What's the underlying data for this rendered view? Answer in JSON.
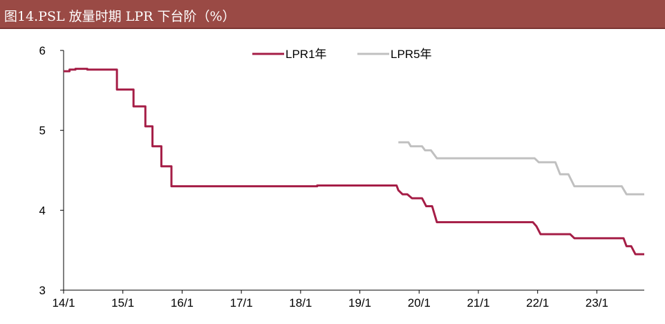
{
  "title": "图14.PSL 放量时期 LPR 下台阶（%）",
  "colors": {
    "title_bg": "#9a4a45",
    "lpr1": "#a51d46",
    "lpr5": "#c0c0c0",
    "axis": "#000000"
  },
  "chart_data": {
    "type": "line",
    "title": "图14.PSL 放量时期 LPR 下台阶（%）",
    "xlabel": "",
    "ylabel": "",
    "xlim": [
      2014.0,
      2023.8
    ],
    "ylim": [
      3,
      6
    ],
    "yticks": [
      3,
      4,
      5,
      6
    ],
    "xticks": [
      {
        "label": "14/1",
        "value": 2014.0
      },
      {
        "label": "15/1",
        "value": 2015.0
      },
      {
        "label": "16/1",
        "value": 2016.0
      },
      {
        "label": "17/1",
        "value": 2017.0
      },
      {
        "label": "18/1",
        "value": 2018.0
      },
      {
        "label": "19/1",
        "value": 2019.0
      },
      {
        "label": "20/1",
        "value": 2020.0
      },
      {
        "label": "21/1",
        "value": 2021.0
      },
      {
        "label": "22/1",
        "value": 2022.0
      },
      {
        "label": "23/1",
        "value": 2023.0
      }
    ],
    "grid": false,
    "legend": "top-center",
    "series": [
      {
        "name": "LPR1年",
        "color": "#a51d46",
        "points": [
          [
            2014.0,
            5.74
          ],
          [
            2014.1,
            5.74
          ],
          [
            2014.1,
            5.76
          ],
          [
            2014.2,
            5.76
          ],
          [
            2014.2,
            5.77
          ],
          [
            2014.4,
            5.77
          ],
          [
            2014.4,
            5.76
          ],
          [
            2014.9,
            5.76
          ],
          [
            2014.9,
            5.51
          ],
          [
            2015.18,
            5.51
          ],
          [
            2015.18,
            5.3
          ],
          [
            2015.38,
            5.3
          ],
          [
            2015.38,
            5.05
          ],
          [
            2015.5,
            5.05
          ],
          [
            2015.5,
            4.8
          ],
          [
            2015.65,
            4.8
          ],
          [
            2015.65,
            4.55
          ],
          [
            2015.82,
            4.55
          ],
          [
            2015.82,
            4.3
          ],
          [
            2018.28,
            4.3
          ],
          [
            2018.28,
            4.31
          ],
          [
            2019.62,
            4.31
          ],
          [
            2019.65,
            4.25
          ],
          [
            2019.72,
            4.2
          ],
          [
            2019.8,
            4.2
          ],
          [
            2019.88,
            4.15
          ],
          [
            2020.05,
            4.15
          ],
          [
            2020.12,
            4.05
          ],
          [
            2020.22,
            4.05
          ],
          [
            2020.3,
            3.85
          ],
          [
            2021.92,
            3.85
          ],
          [
            2021.98,
            3.8
          ],
          [
            2022.05,
            3.7
          ],
          [
            2022.55,
            3.7
          ],
          [
            2022.62,
            3.65
          ],
          [
            2023.45,
            3.65
          ],
          [
            2023.5,
            3.55
          ],
          [
            2023.58,
            3.55
          ],
          [
            2023.65,
            3.45
          ],
          [
            2023.8,
            3.45
          ]
        ]
      },
      {
        "name": "LPR5年",
        "color": "#c0c0c0",
        "points": [
          [
            2019.65,
            4.85
          ],
          [
            2019.82,
            4.85
          ],
          [
            2019.86,
            4.8
          ],
          [
            2020.05,
            4.8
          ],
          [
            2020.1,
            4.75
          ],
          [
            2020.2,
            4.75
          ],
          [
            2020.3,
            4.65
          ],
          [
            2021.95,
            4.65
          ],
          [
            2022.02,
            4.6
          ],
          [
            2022.3,
            4.6
          ],
          [
            2022.38,
            4.45
          ],
          [
            2022.52,
            4.45
          ],
          [
            2022.62,
            4.3
          ],
          [
            2023.42,
            4.3
          ],
          [
            2023.5,
            4.2
          ],
          [
            2023.8,
            4.2
          ]
        ]
      }
    ]
  }
}
